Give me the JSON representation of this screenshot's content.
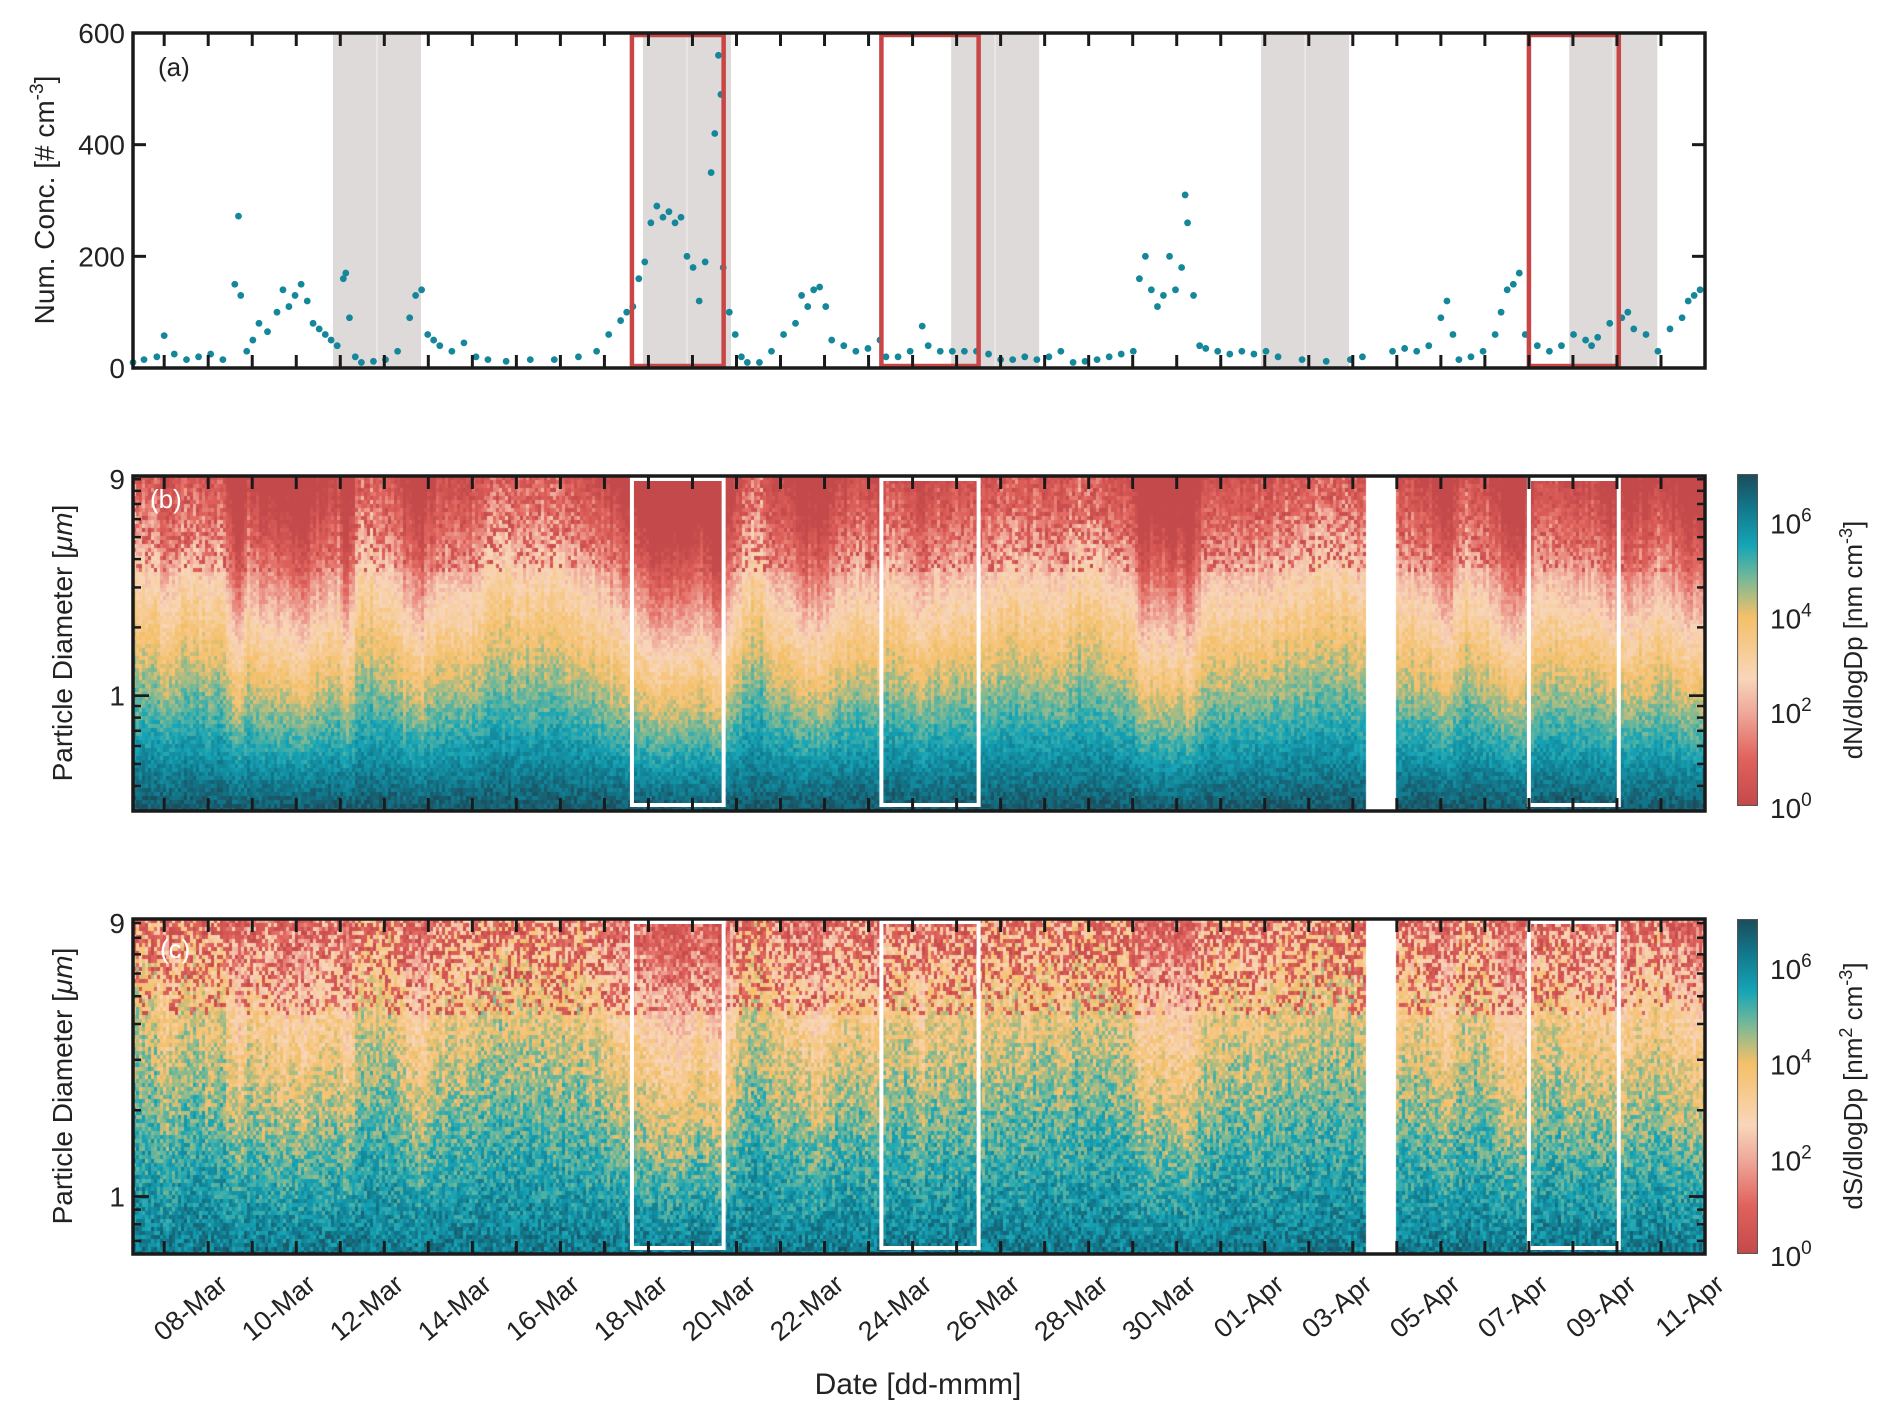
{
  "chart_data": [
    {
      "panel_label": "(a)",
      "type": "scatter",
      "ylabel": "Num. Conc. [# cm",
      "ylabel_sup": "-3",
      "ylabel_end": "]",
      "ylim": [
        0,
        600
      ],
      "y_ticks": [
        0,
        200,
        400,
        600
      ],
      "xlim": [
        "03-06 07:00",
        "04-11 00:00"
      ],
      "marker_color": "#15879a",
      "shaded_color": "#dedad9",
      "highlight_color": "#c84646",
      "shaded_periods": [
        [
          "03-10 20:00",
          "03-12 20:00"
        ],
        [
          "03-17 21:00",
          "03-19 21:00"
        ],
        [
          "03-24 21:00",
          "03-26 21:00"
        ],
        [
          "03-31 22:00",
          "04-02 22:00"
        ],
        [
          "04-07 22:00",
          "04-09 22:00"
        ]
      ],
      "highlight_periods": [
        [
          "03-17 15:00",
          "03-19 17:00"
        ],
        [
          "03-23 07:00",
          "03-25 12:00"
        ],
        [
          "04-07 00:00",
          "04-09 01:00"
        ]
      ],
      "points": [
        [
          "03-06 07:00",
          10
        ],
        [
          "03-06 13:00",
          15
        ],
        [
          "03-06 20:00",
          20
        ],
        [
          "03-07 00:00",
          58
        ],
        [
          "03-07 05:30",
          25
        ],
        [
          "03-07 12:10",
          15
        ],
        [
          "03-07 18:45",
          20
        ],
        [
          "03-08 01:20",
          25
        ],
        [
          "03-08 08:00",
          15
        ],
        [
          "03-08 14:30",
          150
        ],
        [
          "03-08 16:30",
          272
        ],
        [
          "03-08 17:45",
          130
        ],
        [
          "03-08 21:00",
          30
        ],
        [
          "03-09 00:20",
          50
        ],
        [
          "03-09 03:40",
          80
        ],
        [
          "03-09 08:20",
          65
        ],
        [
          "03-09 13:30",
          100
        ],
        [
          "03-09 16:45",
          140
        ],
        [
          "03-09 20:00",
          110
        ],
        [
          "03-09 23:20",
          130
        ],
        [
          "03-10 02:40",
          150
        ],
        [
          "03-10 06:00",
          120
        ],
        [
          "03-10 09:10",
          80
        ],
        [
          "03-10 12:30",
          70
        ],
        [
          "03-10 15:50",
          60
        ],
        [
          "03-10 19:00",
          50
        ],
        [
          "03-10 22:20",
          40
        ],
        [
          "03-11 01:40",
          160
        ],
        [
          "03-11 03:00",
          170
        ],
        [
          "03-11 05:00",
          90
        ],
        [
          "03-11 08:10",
          20
        ],
        [
          "03-11 11:30",
          10
        ],
        [
          "03-11 18:05",
          12
        ],
        [
          "03-12 00:40",
          15
        ],
        [
          "03-12 07:15",
          30
        ],
        [
          "03-12 13:50",
          90
        ],
        [
          "03-12 17:05",
          130
        ],
        [
          "03-12 20:20",
          140
        ],
        [
          "03-12 23:40",
          60
        ],
        [
          "03-13 02:55",
          50
        ],
        [
          "03-13 06:15",
          40
        ],
        [
          "03-13 12:50",
          30
        ],
        [
          "03-13 19:25",
          45
        ],
        [
          "03-14 02:00",
          20
        ],
        [
          "03-14 08:30",
          15
        ],
        [
          "03-14 18:25",
          12
        ],
        [
          "03-15 07:35",
          15
        ],
        [
          "03-15 20:40",
          15
        ],
        [
          "03-16 09:50",
          20
        ],
        [
          "03-16 19:45",
          30
        ],
        [
          "03-17 02:20",
          60
        ],
        [
          "03-17 08:50",
          85
        ],
        [
          "03-17 12:10",
          100
        ],
        [
          "03-17 15:30",
          110
        ],
        [
          "03-17 18:45",
          160
        ],
        [
          "03-17 22:00",
          190
        ],
        [
          "03-18 01:20",
          260
        ],
        [
          "03-18 04:35",
          290
        ],
        [
          "03-18 07:55",
          270
        ],
        [
          "03-18 11:10",
          280
        ],
        [
          "03-18 14:30",
          260
        ],
        [
          "03-18 17:45",
          270
        ],
        [
          "03-18 21:00",
          200
        ],
        [
          "03-19 00:20",
          180
        ],
        [
          "03-19 03:40",
          120
        ],
        [
          "03-19 06:55",
          190
        ],
        [
          "03-19 10:10",
          350
        ],
        [
          "03-19 12:10",
          420
        ],
        [
          "03-19 14:10",
          560
        ],
        [
          "03-19 15:30",
          490
        ],
        [
          "03-19 16:45",
          180
        ],
        [
          "03-19 20:05",
          100
        ],
        [
          "03-19 23:20",
          60
        ],
        [
          "03-20 02:40",
          20
        ],
        [
          "03-20 05:55",
          10
        ],
        [
          "03-20 12:30",
          10
        ],
        [
          "03-20 19:05",
          30
        ],
        [
          "03-21 01:40",
          60
        ],
        [
          "03-21 08:10",
          80
        ],
        [
          "03-21 11:30",
          130
        ],
        [
          "03-21 14:50",
          110
        ],
        [
          "03-21 18:05",
          140
        ],
        [
          "03-21 21:20",
          145
        ],
        [
          "03-22 00:40",
          110
        ],
        [
          "03-22 03:55",
          50
        ],
        [
          "03-22 10:30",
          40
        ],
        [
          "03-22 17:05",
          30
        ],
        [
          "03-22 23:40",
          35
        ],
        [
          "03-23 06:15",
          50
        ],
        [
          "03-23 09:30",
          20
        ],
        [
          "03-23 16:05",
          20
        ],
        [
          "03-23 22:40",
          30
        ],
        [
          "03-24 05:15",
          75
        ],
        [
          "03-24 08:30",
          40
        ],
        [
          "03-24 15:05",
          30
        ],
        [
          "03-24 21:40",
          30
        ],
        [
          "03-25 04:15",
          30
        ],
        [
          "03-25 10:50",
          30
        ],
        [
          "03-25 17:25",
          25
        ],
        [
          "03-26 00:00",
          15
        ],
        [
          "03-26 06:35",
          15
        ],
        [
          "03-26 13:10",
          20
        ],
        [
          "03-26 19:45",
          15
        ],
        [
          "03-27 02:20",
          20
        ],
        [
          "03-27 08:50",
          30
        ],
        [
          "03-27 15:30",
          10
        ],
        [
          "03-27 22:00",
          12
        ],
        [
          "03-28 04:35",
          15
        ],
        [
          "03-28 11:10",
          20
        ],
        [
          "03-28 17:45",
          25
        ],
        [
          "03-29 00:20",
          30
        ],
        [
          "03-29 03:40",
          160
        ],
        [
          "03-29 06:55",
          200
        ],
        [
          "03-29 10:10",
          140
        ],
        [
          "03-29 13:30",
          110
        ],
        [
          "03-29 16:45",
          130
        ],
        [
          "03-29 20:05",
          200
        ],
        [
          "03-29 23:20",
          140
        ],
        [
          "03-30 02:40",
          180
        ],
        [
          "03-30 04:35",
          310
        ],
        [
          "03-30 05:55",
          260
        ],
        [
          "03-30 09:10",
          130
        ],
        [
          "03-30 12:30",
          40
        ],
        [
          "03-30 15:50",
          35
        ],
        [
          "03-30 22:20",
          30
        ],
        [
          "03-31 04:55",
          25
        ],
        [
          "03-31 11:30",
          30
        ],
        [
          "03-31 18:05",
          25
        ],
        [
          "04-01 00:40",
          30
        ],
        [
          "04-01 07:15",
          20
        ],
        [
          "04-01 20:20",
          15
        ],
        [
          "04-02 09:30",
          12
        ],
        [
          "04-02 22:40",
          15
        ],
        [
          "04-03 05:15",
          20
        ],
        [
          "04-03 21:40",
          30
        ],
        [
          "04-04 04:15",
          35
        ],
        [
          "04-04 10:50",
          30
        ],
        [
          "04-04 17:25",
          40
        ],
        [
          "04-05 00:00",
          90
        ],
        [
          "04-05 03:20",
          120
        ],
        [
          "04-05 06:35",
          60
        ],
        [
          "04-05 09:50",
          15
        ],
        [
          "04-05 16:25",
          20
        ],
        [
          "04-05 23:00",
          30
        ],
        [
          "04-06 05:35",
          60
        ],
        [
          "04-06 08:50",
          100
        ],
        [
          "04-06 12:10",
          140
        ],
        [
          "04-06 15:30",
          150
        ],
        [
          "04-06 18:45",
          170
        ],
        [
          "04-06 22:00",
          60
        ],
        [
          "04-07 04:35",
          40
        ],
        [
          "04-07 11:10",
          30
        ],
        [
          "04-07 17:45",
          40
        ],
        [
          "04-08 00:20",
          60
        ],
        [
          "04-08 06:55",
          50
        ],
        [
          "04-08 10:10",
          40
        ],
        [
          "04-08 13:30",
          55
        ],
        [
          "04-08 20:05",
          80
        ],
        [
          "04-09 02:40",
          90
        ],
        [
          "04-09 05:55",
          100
        ],
        [
          "04-09 09:10",
          70
        ],
        [
          "04-09 15:50",
          60
        ],
        [
          "04-09 22:20",
          30
        ],
        [
          "04-10 04:55",
          70
        ],
        [
          "04-10 11:30",
          90
        ],
        [
          "04-10 14:50",
          120
        ],
        [
          "04-10 18:05",
          130
        ],
        [
          "04-10 21:20",
          140
        ]
      ]
    },
    {
      "panel_label": "(b)",
      "type": "heatmap",
      "ylabel": "Particle Diameter [",
      "ylabel_unit": "μm",
      "ylabel_end": "]",
      "y_scale": "log",
      "ylim": [
        0.31,
        9.3
      ],
      "y_tick_labels": [
        "1",
        "9"
      ],
      "data_gap": [
        "04-03 07:00",
        "04-03 22:00"
      ],
      "colorbar": {
        "label": "dN/dlogDp [nm cm",
        "label_sup": "-3",
        "label_end": "]",
        "scale": "log",
        "clim_exponent": [
          0,
          7
        ],
        "tick_base": "10",
        "tick_exponents": [
          "0",
          "2",
          "4",
          "6"
        ]
      }
    },
    {
      "panel_label": "(c)",
      "type": "heatmap",
      "ylabel": "Particle Diameter [",
      "ylabel_unit": "μm",
      "ylabel_end": "]",
      "y_scale": "log",
      "ylim": [
        0.63,
        9.3
      ],
      "y_tick_labels": [
        "1",
        "9"
      ],
      "data_gap": [
        "04-03 07:00",
        "04-03 22:00"
      ],
      "colorbar": {
        "label": "dS/dlogDp [nm",
        "label_sup": "2",
        "label_mid": " cm",
        "label_sup2": "-3",
        "label_end": "]",
        "scale": "log",
        "clim_exponent": [
          0,
          7
        ],
        "tick_base": "10",
        "tick_exponents": [
          "0",
          "2",
          "4",
          "6"
        ]
      },
      "xlabel": "Date [dd-mmm]",
      "x_tick_labels": [
        "08-Mar",
        "10-Mar",
        "12-Mar",
        "14-Mar",
        "16-Mar",
        "18-Mar",
        "20-Mar",
        "22-Mar",
        "24-Mar",
        "26-Mar",
        "28-Mar",
        "30-Mar",
        "01-Apr",
        "03-Apr",
        "05-Apr",
        "07-Apr",
        "09-Apr",
        "11-Apr"
      ]
    }
  ]
}
